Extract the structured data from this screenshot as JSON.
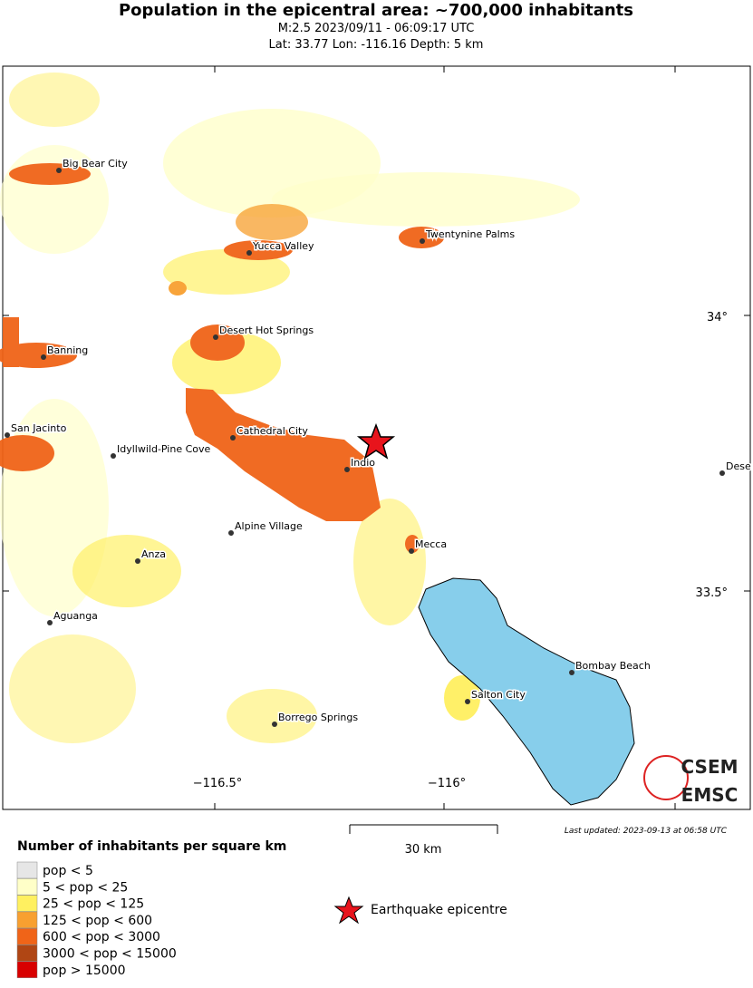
{
  "header": {
    "title": "Population in the epicentral area: ~700,000 inhabitants",
    "line1": "M:2.5 2023/09/11 - 06:09:17 UTC",
    "line2": "Lat: 33.77 Lon: -116.16 Depth: 5 km"
  },
  "map": {
    "lat_labels": [
      "34°",
      "33.5°"
    ],
    "lon_labels": [
      "−116.5°",
      "−116°"
    ],
    "cities": [
      "Big Bear City",
      "Yucca Valley",
      "Twentynine Palms",
      "Desert Hot Springs",
      "Banning",
      "San Jacinto",
      "Cathedral City",
      "Idyllwild-Pine Cove",
      "Indio",
      "Alpine Village",
      "Anza",
      "Mecca",
      "Aguanga",
      "Bombay Beach",
      "Salton City",
      "Borrego Springs",
      "Dese"
    ],
    "logo": [
      "CSEM",
      "EMSC"
    ]
  },
  "scale": "30 km",
  "updated": "Last updated: 2023-09-13 at 06:58 UTC",
  "legend": {
    "title": "Number of inhabitants per square km",
    "items": [
      {
        "label": "pop < 5",
        "color": "#e6e6e6"
      },
      {
        "label": "5 < pop < 25",
        "color": "#ffffc8"
      },
      {
        "label": "25 < pop < 125",
        "color": "#fff060"
      },
      {
        "label": "125 < pop < 600",
        "color": "#f8a030"
      },
      {
        "label": "600 < pop < 3000",
        "color": "#f06418"
      },
      {
        "label": "3000 < pop < 15000",
        "color": "#b04614"
      },
      {
        "label": "pop > 15000",
        "color": "#d80000"
      }
    ],
    "epicentre": "Earthquake epicentre"
  }
}
